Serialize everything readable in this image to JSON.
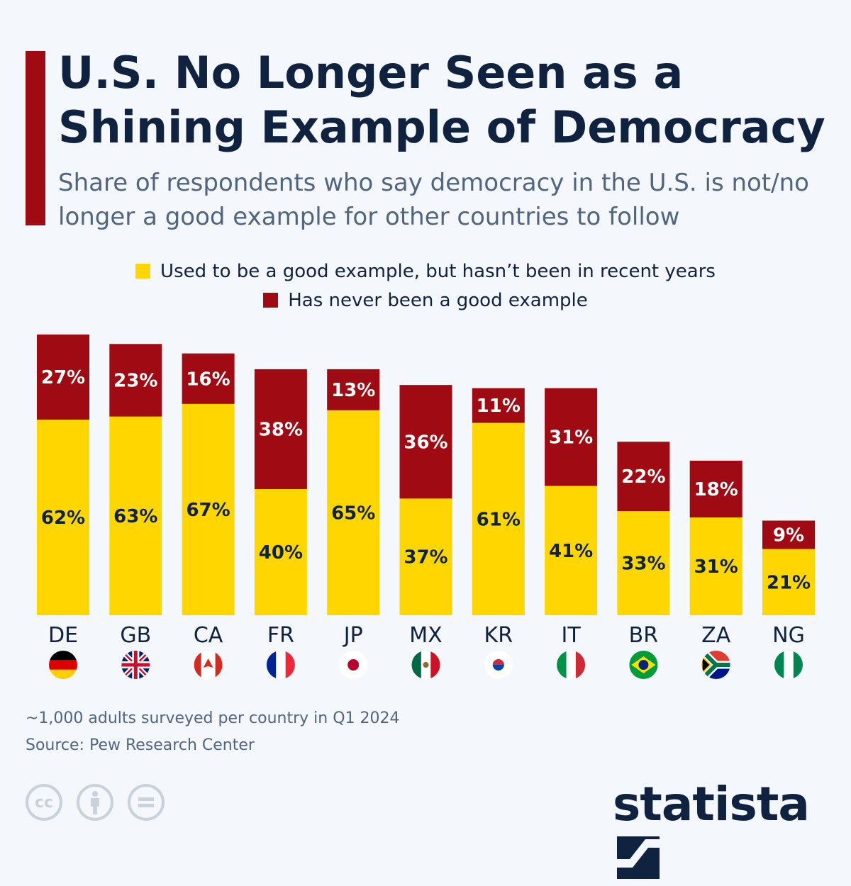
{
  "title": "U.S. No Longer Seen as a Shining Example of Democracy",
  "subtitle": "Share of respondents who say democracy in the U.S. is not/no longer a good example for other countries to follow",
  "colors": {
    "accent": "#a00b13",
    "used_to_be": "#ffd600",
    "never": "#a00b13",
    "title": "#0f2340"
  },
  "chart_data": {
    "type": "bar",
    "stacked": true,
    "categories": [
      "DE",
      "GB",
      "CA",
      "FR",
      "JP",
      "MX",
      "KR",
      "IT",
      "BR",
      "ZA",
      "NG"
    ],
    "series": [
      {
        "name": "Used to be a good example, but hasn’t been in recent years",
        "values": [
          62,
          63,
          67,
          40,
          65,
          37,
          61,
          41,
          33,
          31,
          21
        ],
        "color": "#ffd600"
      },
      {
        "name": "Has never been a good example",
        "values": [
          27,
          23,
          16,
          38,
          13,
          36,
          11,
          31,
          22,
          18,
          9
        ],
        "color": "#a00b13"
      }
    ],
    "unit": "%",
    "legend_placement": "top",
    "grid": false,
    "flags": [
      "germany",
      "united-kingdom",
      "canada",
      "france",
      "japan",
      "mexico",
      "south-korea",
      "italy",
      "brazil",
      "south-africa",
      "nigeria"
    ]
  },
  "footer": {
    "note": "~1,000 adults surveyed per country in Q1 2024",
    "source": "Source: Pew Research Center",
    "brand": "statista",
    "license_icons": [
      "cc-icon",
      "attribution-icon",
      "no-derivatives-icon"
    ]
  }
}
